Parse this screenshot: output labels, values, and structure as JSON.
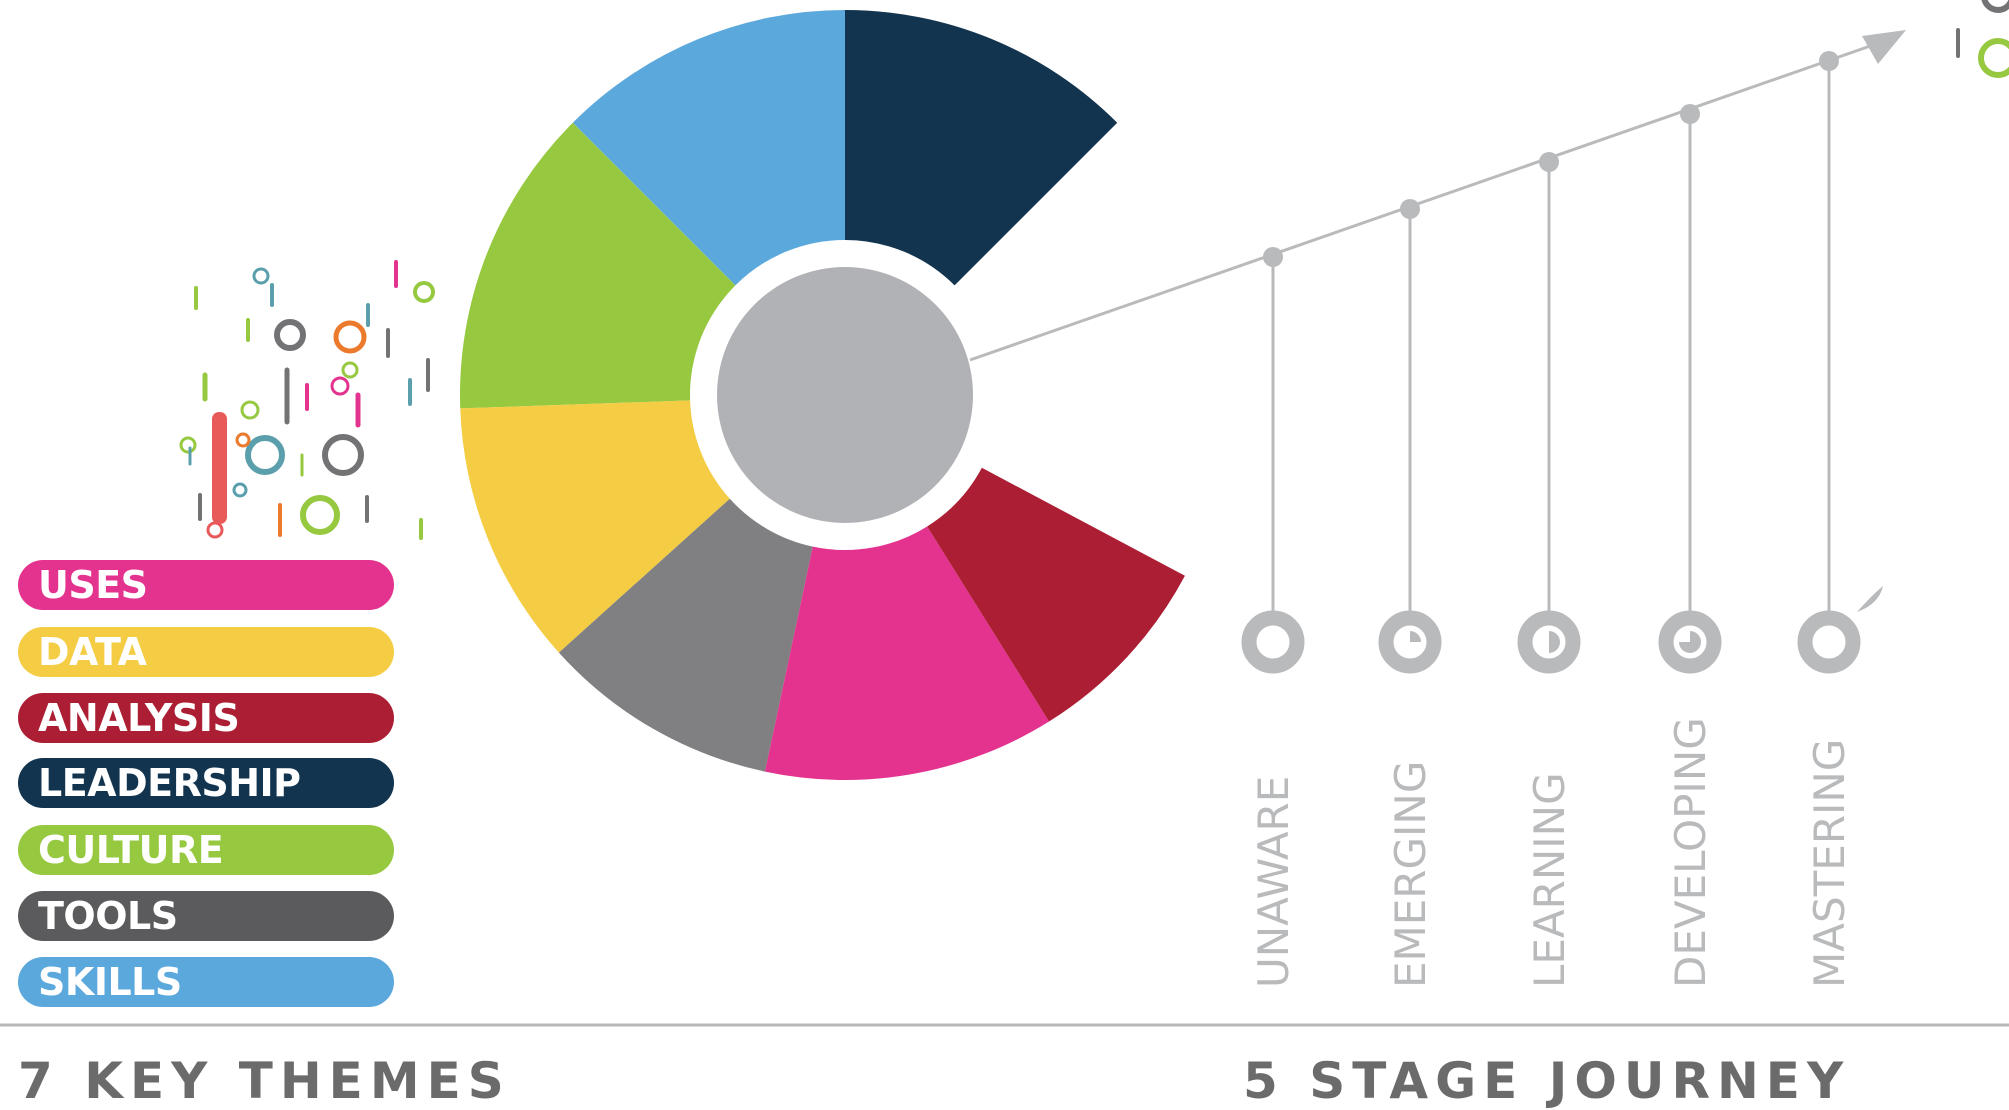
{
  "themes": {
    "heading": "7 KEY THEMES",
    "items": [
      {
        "label": "USES",
        "color": "#e3338f"
      },
      {
        "label": "DATA",
        "color": "#f4cd45"
      },
      {
        "label": "ANALYSIS",
        "color": "#ac1e33"
      },
      {
        "label": "LEADERSHIP",
        "color": "#12344f"
      },
      {
        "label": "CULTURE",
        "color": "#96c840"
      },
      {
        "label": "TOOLS",
        "color": "#5b5b5d"
      },
      {
        "label": "SKILLS",
        "color": "#5ba8dc"
      }
    ]
  },
  "wheel": {
    "segments": [
      {
        "theme": "LEADERSHIP",
        "color": "#12344f"
      },
      {
        "theme": "SKILLS",
        "color": "#5ba8dc"
      },
      {
        "theme": "CULTURE",
        "color": "#96c840"
      },
      {
        "theme": "DATA",
        "color": "#f4cd45"
      },
      {
        "theme": "TOOLS",
        "color": "#808083"
      },
      {
        "theme": "USES",
        "color": "#e3338f"
      },
      {
        "theme": "ANALYSIS",
        "color": "#ac1e33"
      }
    ],
    "hub_color": "#b1b2b5"
  },
  "journey": {
    "heading": "5 STAGE JOURNEY",
    "stages": [
      {
        "label": "UNAWARE",
        "icon": "empty-ring-icon"
      },
      {
        "label": "EMERGING",
        "icon": "ring-quarter-icon"
      },
      {
        "label": "LEARNING",
        "icon": "ring-half-icon"
      },
      {
        "label": "DEVELOPING",
        "icon": "ring-three-quarter-icon"
      },
      {
        "label": "MASTERING",
        "icon": "sprouting-ring-icon"
      }
    ],
    "line_color": "#b9babc"
  }
}
